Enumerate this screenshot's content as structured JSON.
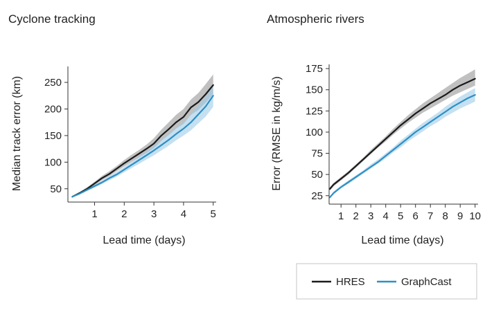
{
  "chart_data": [
    {
      "type": "line",
      "title": "Cyclone tracking",
      "xlabel": "Lead time (days)",
      "ylabel": "Median track error (km)",
      "xlim": [
        0.1,
        5.1
      ],
      "ylim": [
        25,
        280
      ],
      "xticks": [
        1,
        2,
        3,
        4,
        5
      ],
      "yticks": [
        50,
        100,
        150,
        200,
        250
      ],
      "x": [
        0.25,
        0.5,
        0.75,
        1.0,
        1.25,
        1.5,
        1.75,
        2.0,
        2.25,
        2.5,
        2.75,
        3.0,
        3.25,
        3.5,
        3.75,
        4.0,
        4.25,
        4.5,
        4.75,
        5.0
      ],
      "series": [
        {
          "name": "HRES",
          "color": "#1a1a1a",
          "band_color": "#8c8c8c",
          "values": [
            35,
            42,
            50,
            60,
            70,
            78,
            88,
            98,
            107,
            116,
            125,
            135,
            150,
            162,
            175,
            185,
            203,
            213,
            228,
            245
          ],
          "lower": [
            34,
            40,
            48,
            57,
            66,
            74,
            83,
            92,
            101,
            109,
            117,
            126,
            140,
            151,
            163,
            172,
            189,
            198,
            212,
            228
          ],
          "upper": [
            37,
            44,
            53,
            63,
            74,
            83,
            93,
            104,
            114,
            123,
            133,
            145,
            161,
            175,
            189,
            200,
            218,
            230,
            247,
            265
          ]
        },
        {
          "name": "GraphCast",
          "color": "#2d8fc4",
          "band_color": "#9fcbe8",
          "values": [
            35,
            41,
            48,
            55,
            62,
            70,
            77,
            86,
            95,
            104,
            113,
            122,
            132,
            142,
            153,
            163,
            175,
            190,
            205,
            225
          ],
          "lower": [
            34,
            39,
            46,
            52,
            59,
            66,
            73,
            81,
            89,
            97,
            105,
            113,
            122,
            131,
            141,
            150,
            160,
            173,
            186,
            204
          ],
          "upper": [
            36,
            43,
            50,
            58,
            65,
            74,
            82,
            91,
            101,
            111,
            121,
            131,
            142,
            153,
            165,
            176,
            190,
            207,
            224,
            246
          ]
        }
      ]
    },
    {
      "type": "line",
      "title": "Atmospheric rivers",
      "xlabel": "Lead time (days)",
      "ylabel": "Error (RMSE in kg/m/s)",
      "xlim": [
        0.2,
        10.2
      ],
      "ylim": [
        15,
        180
      ],
      "xticks": [
        1,
        2,
        3,
        4,
        5,
        6,
        7,
        8,
        9,
        10
      ],
      "yticks": [
        25,
        50,
        75,
        100,
        125,
        150,
        175
      ],
      "x": [
        0.25,
        0.5,
        1,
        1.5,
        2,
        2.5,
        3,
        3.5,
        4,
        4.5,
        5,
        5.5,
        6,
        6.5,
        7,
        7.5,
        8,
        8.5,
        9,
        9.5,
        10
      ],
      "series": [
        {
          "name": "HRES",
          "color": "#1a1a1a",
          "band_color": "#8c8c8c",
          "values": [
            33,
            38,
            45,
            52,
            60,
            68,
            76,
            84,
            92,
            100,
            108,
            115,
            122,
            128,
            134,
            139,
            144,
            150,
            155,
            159,
            163
          ],
          "lower": [
            31,
            36,
            43,
            50,
            58,
            66,
            74,
            82,
            89,
            97,
            104,
            111,
            117,
            123,
            128,
            133,
            138,
            143,
            147,
            151,
            155
          ],
          "upper": [
            35,
            40,
            47,
            54,
            62,
            70,
            79,
            87,
            95,
            104,
            112,
            120,
            127,
            134,
            140,
            146,
            152,
            158,
            164,
            169,
            174
          ]
        },
        {
          "name": "GraphCast",
          "color": "#2d8fc4",
          "band_color": "#9fcbe8",
          "values": [
            23,
            28,
            35,
            41,
            47,
            53,
            59,
            65,
            72,
            79,
            86,
            93,
            100,
            106,
            112,
            118,
            124,
            130,
            135,
            140,
            144
          ],
          "lower": [
            22,
            27,
            34,
            39,
            45,
            51,
            57,
            63,
            69,
            76,
            82,
            89,
            95,
            101,
            107,
            112,
            118,
            123,
            128,
            132,
            136
          ],
          "upper": [
            24,
            30,
            37,
            43,
            49,
            55,
            62,
            68,
            75,
            82,
            90,
            97,
            104,
            111,
            117,
            123,
            130,
            136,
            142,
            147,
            152
          ]
        }
      ]
    }
  ],
  "legend": {
    "placement": "bottom-right",
    "items": [
      {
        "label": "HRES",
        "color": "#1a1a1a"
      },
      {
        "label": "GraphCast",
        "color": "#2d8fc4"
      }
    ]
  }
}
